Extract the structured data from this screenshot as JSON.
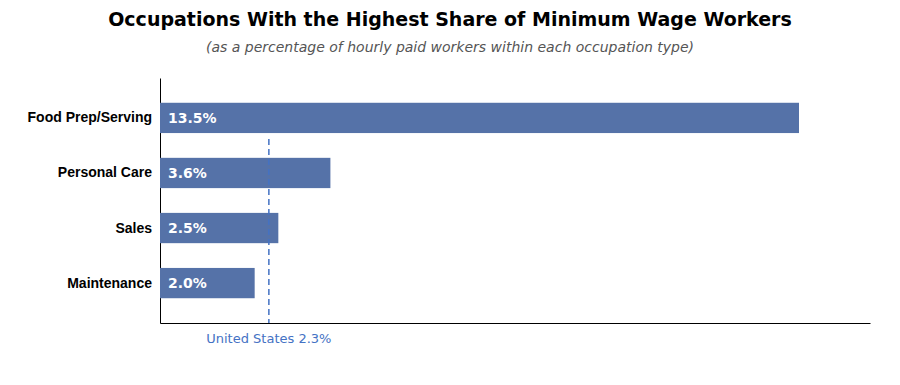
{
  "chart_data": {
    "type": "bar",
    "orientation": "horizontal",
    "title": "Occupations With the Highest Share of Minimum Wage Workers",
    "subtitle": "(as a percentage of hourly paid workers within each occupation type)",
    "categories": [
      "Food Prep/Serving",
      "Personal Care",
      "Sales",
      "Maintenance"
    ],
    "values": [
      13.5,
      3.6,
      2.5,
      2.0
    ],
    "value_labels": [
      "13.5%",
      "3.6%",
      "2.5%",
      "2.0%"
    ],
    "data_labels": true,
    "color": "#5572a8",
    "xlim": [
      0,
      15
    ],
    "tick_labels": "y",
    "grid": false,
    "annotations": [
      {
        "text": "United States 2.3%",
        "x": 2.3,
        "color": "#4472c4"
      }
    ]
  }
}
